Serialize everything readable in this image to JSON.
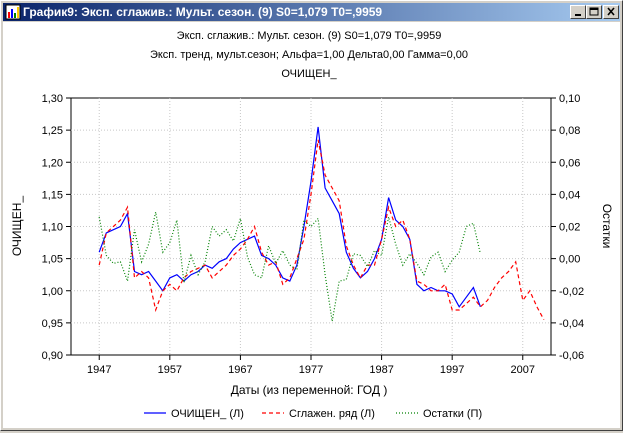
{
  "window": {
    "title": "График9: Эксп. сглажив.: Мульт. сезон. (9) S0=1,079 T0=,9959",
    "accent": "#0a246a",
    "controls": [
      "minimize",
      "maximize",
      "close"
    ]
  },
  "chart_data": {
    "type": "line",
    "title_lines": [
      "Эксп. сглажив.: Мульт. сезон. (9) S0=1,079 T0=,9959",
      "Эксп. тренд, мульт.сезон; Альфа=1,00 Дельта0,00 Гамма=0,00",
      "ОЧИЩЕН_"
    ],
    "xlabel": "Даты (из переменной: ГОД )",
    "ylabel_left": "ОЧИЩЕН_",
    "ylabel_right": "Остатки",
    "xlim": [
      1943,
      2011
    ],
    "xticks": [
      1947,
      1957,
      1967,
      1977,
      1987,
      1997,
      2007
    ],
    "ylim_left": [
      0.9,
      1.3
    ],
    "yticks_left": [
      "0,90",
      "0,95",
      "1,00",
      "1,05",
      "1,10",
      "1,15",
      "1,20",
      "1,25",
      "1,30"
    ],
    "ylim_right": [
      -0.06,
      0.1
    ],
    "yticks_right": [
      "-0,06",
      "-0,04",
      "-0,02",
      "0,00",
      "0,02",
      "0,04",
      "0,06",
      "0,08",
      "0,10"
    ],
    "grid": true,
    "legend_position": "bottom",
    "series": [
      {
        "name": "ОЧИЩЕН_ (Л)",
        "axis": "left",
        "color": "#0000ff",
        "dash": "solid",
        "x": [
          1947,
          1948,
          1949,
          1950,
          1951,
          1952,
          1953,
          1954,
          1955,
          1956,
          1957,
          1958,
          1959,
          1960,
          1961,
          1962,
          1963,
          1964,
          1965,
          1966,
          1967,
          1968,
          1969,
          1970,
          1971,
          1972,
          1973,
          1974,
          1975,
          1976,
          1977,
          1978,
          1979,
          1980,
          1981,
          1982,
          1983,
          1984,
          1985,
          1986,
          1987,
          1988,
          1989,
          1990,
          1991,
          1992,
          1993,
          1994,
          1995,
          1996,
          1997,
          1998,
          1999,
          2000,
          2001
        ],
        "values": [
          1.06,
          1.09,
          1.095,
          1.1,
          1.12,
          1.03,
          1.025,
          1.03,
          1.015,
          1.0,
          1.02,
          1.025,
          1.015,
          1.025,
          1.03,
          1.04,
          1.035,
          1.045,
          1.05,
          1.065,
          1.075,
          1.08,
          1.085,
          1.055,
          1.05,
          1.04,
          1.02,
          1.015,
          1.04,
          1.1,
          1.17,
          1.255,
          1.16,
          1.14,
          1.12,
          1.06,
          1.035,
          1.02,
          1.03,
          1.05,
          1.08,
          1.145,
          1.11,
          1.1,
          1.08,
          1.01,
          1.0,
          1.005,
          1.0,
          1.0,
          0.995,
          0.975,
          0.99,
          1.005,
          0.975
        ]
      },
      {
        "name": "Сглажен. ряд (Л)",
        "axis": "left",
        "color": "#ff0000",
        "dash": "dashed",
        "x": [
          1947,
          1948,
          1949,
          1950,
          1951,
          1952,
          1953,
          1954,
          1955,
          1956,
          1957,
          1958,
          1959,
          1960,
          1961,
          1962,
          1963,
          1964,
          1965,
          1966,
          1967,
          1968,
          1969,
          1970,
          1971,
          1972,
          1973,
          1974,
          1975,
          1976,
          1977,
          1978,
          1979,
          1980,
          1981,
          1982,
          1983,
          1984,
          1985,
          1986,
          1987,
          1988,
          1989,
          1990,
          1991,
          1992,
          1993,
          1994,
          1995,
          1996,
          1997,
          1998,
          1999,
          2000,
          2001,
          2002,
          2003,
          2004,
          2005,
          2006,
          2007,
          2008,
          2009,
          2010
        ],
        "values": [
          1.04,
          1.09,
          1.1,
          1.11,
          1.13,
          1.02,
          1.03,
          1.02,
          0.97,
          1.0,
          1.01,
          1.0,
          1.02,
          1.03,
          1.035,
          1.04,
          1.02,
          1.03,
          1.04,
          1.055,
          1.065,
          1.08,
          1.1,
          1.06,
          1.04,
          1.045,
          1.01,
          1.02,
          1.05,
          1.08,
          1.15,
          1.235,
          1.18,
          1.16,
          1.14,
          1.07,
          1.04,
          1.02,
          1.04,
          1.04,
          1.08,
          1.13,
          1.1,
          1.11,
          1.08,
          1.015,
          1.01,
          1.0,
          1.0,
          1.01,
          0.97,
          0.97,
          0.98,
          0.99,
          0.975,
          0.985,
          1.005,
          1.02,
          1.03,
          1.045,
          0.985,
          1.0,
          0.975,
          0.955
        ]
      },
      {
        "name": "Остатки (П)",
        "axis": "right",
        "color": "#008000",
        "dash": "dotted",
        "x": [
          1947,
          1948,
          1949,
          1950,
          1951,
          1952,
          1953,
          1954,
          1955,
          1956,
          1957,
          1958,
          1959,
          1960,
          1961,
          1962,
          1963,
          1964,
          1965,
          1966,
          1967,
          1968,
          1969,
          1970,
          1971,
          1972,
          1973,
          1974,
          1975,
          1976,
          1977,
          1978,
          1979,
          1980,
          1981,
          1982,
          1983,
          1984,
          1985,
          1986,
          1987,
          1988,
          1989,
          1990,
          1991,
          1992,
          1993,
          1994,
          1995,
          1996,
          1997,
          1998,
          1999,
          2000,
          2001
        ],
        "values": [
          0.026,
          0.002,
          -0.003,
          -0.002,
          -0.014,
          0.018,
          -0.002,
          0.009,
          0.029,
          0.004,
          0.01,
          0.024,
          -0.015,
          0.002,
          -0.01,
          -0.002,
          0.02,
          0.014,
          0.018,
          0.011,
          0.025,
          0.001,
          -0.01,
          -0.012,
          0.008,
          -0.003,
          0.005,
          -0.004,
          -0.007,
          0.024,
          0.02,
          0.025,
          -0.01,
          -0.039,
          -0.014,
          -0.013,
          0.003,
          0.002,
          -0.005,
          0.005,
          0.002,
          0.026,
          0.009,
          -0.004,
          0.003,
          -0.003,
          -0.01,
          0.001,
          0.004,
          -0.008,
          -0.001,
          0.004,
          0.02,
          0.022,
          0.003
        ]
      }
    ]
  }
}
